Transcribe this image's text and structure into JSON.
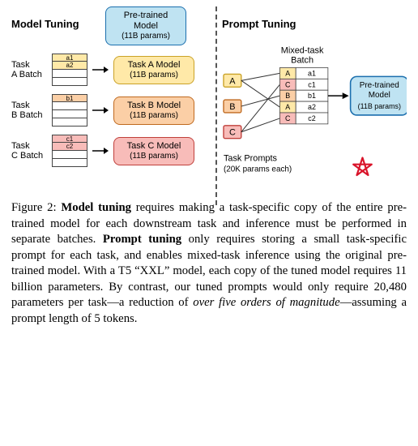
{
  "left": {
    "heading": "Model Tuning",
    "pretrained": {
      "name": "Pre-trained Model",
      "params": "(11B params)"
    },
    "tasks": [
      {
        "label": "Task A Batch",
        "model_name": "Task A Model",
        "model_params": "(11B params)",
        "tint": "taskA",
        "cells": [
          "a1",
          "a2"
        ]
      },
      {
        "label": "Task B Batch",
        "model_name": "Task B Model",
        "model_params": "(11B params)",
        "tint": "taskB",
        "cells": [
          "b1",
          ""
        ]
      },
      {
        "label": "Task C Batch",
        "model_name": "Task C Model",
        "model_params": "(11B params)",
        "tint": "taskC",
        "cells": [
          "c1",
          "c2"
        ]
      }
    ]
  },
  "right": {
    "heading": "Prompt Tuning",
    "mixed_label": "Mixed-task Batch",
    "task_prompts_label": "Task Prompts",
    "task_prompts_sub": "(20K params each)",
    "prompts": [
      {
        "letter": "A",
        "tint": "#ffe9a8",
        "border": "#caa227"
      },
      {
        "letter": "B",
        "tint": "#fbcfa6",
        "border": "#c06a20"
      },
      {
        "letter": "C",
        "tint": "#f8bcb9",
        "border": "#c0403b"
      }
    ],
    "batch_rows": [
      {
        "task": "A",
        "sample": "a1",
        "tint": "#ffe9a8"
      },
      {
        "task": "C",
        "sample": "c1",
        "tint": "#f8bcb9"
      },
      {
        "task": "B",
        "sample": "b1",
        "tint": "#fbcfa6"
      },
      {
        "task": "A",
        "sample": "a2",
        "tint": "#ffe9a8"
      },
      {
        "task": "C",
        "sample": "c2",
        "tint": "#f8bcb9"
      }
    ],
    "pretrained": {
      "name": "Pre-trained Model",
      "params": "(11B params)"
    },
    "star_color": "#d9142a"
  },
  "caption": {
    "lead": "Figure 2:",
    "text_parts": [
      {
        "b": true,
        "t": "Model tuning"
      },
      {
        "t": " requires making a task-specific copy of the entire pre-trained model for each downstream task and inference must be performed in separate batches. "
      },
      {
        "b": true,
        "t": "Prompt tuning"
      },
      {
        "t": " only requires storing a small task-specific prompt for each task, and enables mixed-task inference using the original pre-trained model. With a T5 “XXL” model, each copy of the tuned model requires 11 billion parameters. By contrast, our tuned prompts would only require 20,480 parameters per task—a reduction of "
      },
      {
        "i": true,
        "t": "over five orders of magnitude"
      },
      {
        "t": "—assuming a prompt length of 5 tokens."
      }
    ]
  },
  "colors": {
    "pretrained_bg": "#bfe3f2",
    "pretrained_border": "#1b6fae",
    "divider": "#555555"
  }
}
